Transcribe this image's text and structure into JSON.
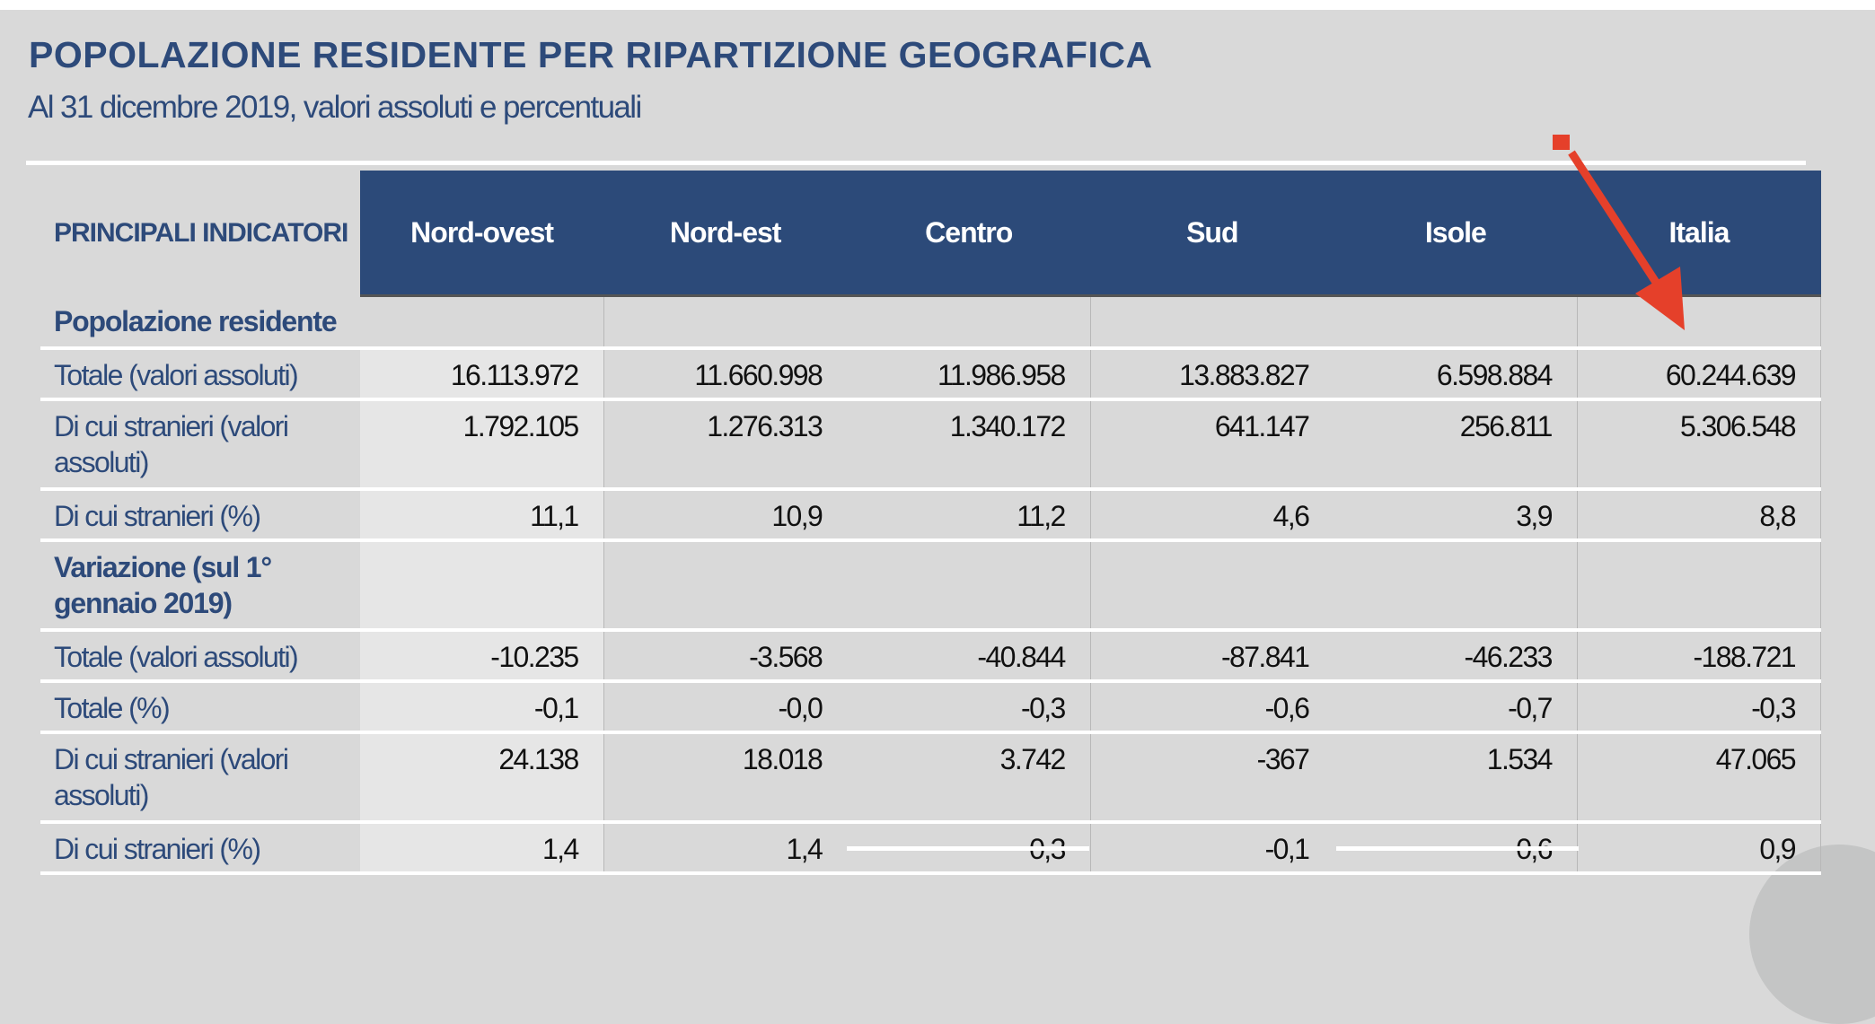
{
  "title": "POPOLAZIONE RESIDENTE PER RIPARTIZIONE GEOGRAFICA",
  "subtitle": "Al 31 dicembre 2019, valori assoluti e percentuali",
  "accent_color": "#2c4a79",
  "annotation_color": "#e5402a",
  "annotation_icon": "red-arrow-pointing-to-italia-column",
  "table": {
    "header_label": "PRINCIPALI INDICATORI",
    "columns": [
      "Nord-ovest",
      "Nord-est",
      "Centro",
      "Sud",
      "Isole",
      "Italia"
    ],
    "sections": [
      {
        "label": "Popolazione residente",
        "rows": [
          {
            "label": "Totale (valori assoluti)",
            "values": [
              "16.113.972",
              "11.660.998",
              "11.986.958",
              "13.883.827",
              "6.598.884",
              "60.244.639"
            ]
          },
          {
            "label": "Di cui stranieri (valori assoluti)",
            "values": [
              "1.792.105",
              "1.276.313",
              "1.340.172",
              "641.147",
              "256.811",
              "5.306.548"
            ]
          },
          {
            "label": "Di cui stranieri (%)",
            "values": [
              "11,1",
              "10,9",
              "11,2",
              "4,6",
              "3,9",
              "8,8"
            ]
          }
        ]
      },
      {
        "label": "Variazione (sul 1° gennaio 2019)",
        "rows": [
          {
            "label": "Totale (valori assoluti)",
            "values": [
              "-10.235",
              "-3.568",
              "-40.844",
              "-87.841",
              "-46.233",
              "-188.721"
            ]
          },
          {
            "label": "Totale (%)",
            "values": [
              "-0,1",
              "-0,0",
              "-0,3",
              "-0,6",
              "-0,7",
              "-0,3"
            ]
          },
          {
            "label": "Di cui stranieri (valori assoluti)",
            "values": [
              "24.138",
              "18.018",
              "3.742",
              "-367",
              "1.534",
              "47.065"
            ]
          },
          {
            "label": "Di cui stranieri (%)",
            "values": [
              "1,4",
              "1,4",
              "0,3",
              "-0,1",
              "0,6",
              "0,9"
            ]
          }
        ]
      }
    ]
  }
}
